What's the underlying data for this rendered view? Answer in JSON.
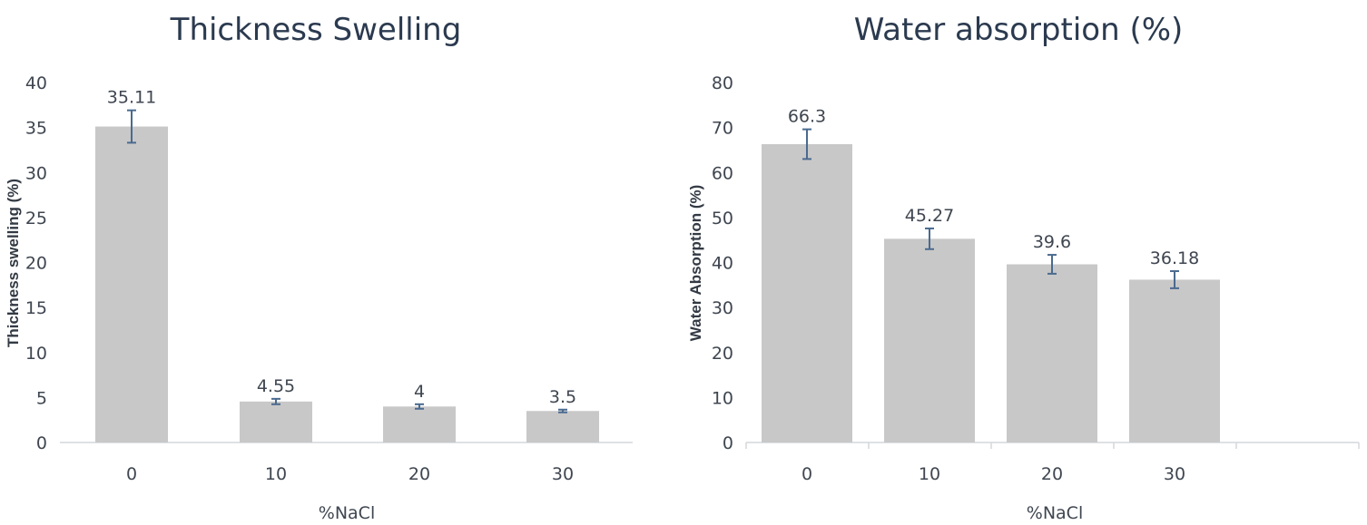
{
  "chart_data": [
    {
      "type": "bar",
      "title": "Thickness Swelling",
      "xlabel": "%NaCl",
      "ylabel": "Thickness swelling (%)",
      "categories": [
        "0",
        "10",
        "20",
        "30"
      ],
      "values": [
        35.11,
        4.55,
        4,
        3.5
      ],
      "data_labels": [
        "35.11",
        "4.55",
        "4",
        "3.5"
      ],
      "error": [
        1.8,
        0.3,
        0.25,
        0.15
      ],
      "ylim": [
        0,
        40
      ],
      "yticks": [
        0,
        5,
        10,
        15,
        20,
        25,
        30,
        35,
        40
      ],
      "grid": false,
      "bar_color": "#c8c8c8",
      "error_color": "#4a6a8f"
    },
    {
      "type": "bar",
      "title": "Water absorption (%)",
      "xlabel": "%NaCl",
      "ylabel": "Water Absorption (%)",
      "categories": [
        "0",
        "10",
        "20",
        "30"
      ],
      "values": [
        66.3,
        45.27,
        39.6,
        36.18
      ],
      "data_labels": [
        "66.3",
        "45.27",
        "39.6",
        "36.18"
      ],
      "error": [
        3.3,
        2.3,
        2.1,
        1.9
      ],
      "ylim": [
        0,
        80
      ],
      "yticks": [
        0,
        10,
        20,
        30,
        40,
        50,
        60,
        70,
        80
      ],
      "grid": false,
      "bar_color": "#c8c8c8",
      "error_color": "#4a6a8f"
    }
  ]
}
